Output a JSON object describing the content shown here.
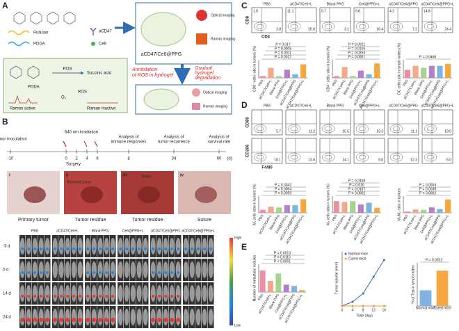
{
  "groups": [
    "PBS",
    "aCD47/Ce6+L",
    "Blank PPG",
    "Ce6@PPG+L",
    "aCD47/Ce6@PPG",
    "aCD47/Ce6@PPG+L"
  ],
  "group_colors": [
    "#ec8fa3",
    "#f3a98c",
    "#a9d28c",
    "#b57fcc",
    "#7fb3e2",
    "#f5a742"
  ],
  "panel_a": {
    "label": "A",
    "legend": [
      "Pullulan",
      "PDDA",
      "aCD47",
      "Ce6"
    ],
    "product": "aCD47/Ce6@PPG",
    "imaging_top": [
      "Optical imaging",
      "Raman imaging"
    ],
    "imaging_bottom": [
      "Optical imaging",
      "Raman imaging"
    ],
    "mechanism": {
      "ros": "ROS",
      "pdda": "PDDA",
      "succinic": "Succinic acid",
      "o2": "O₂",
      "ros2": "ROS",
      "active": "Raman active",
      "inactive": "Raman inactive"
    },
    "annihilation": [
      "Annihilation",
      "of ROS in hydrogel"
    ],
    "degradation": [
      "Gradual",
      "hydrogel",
      "degradation"
    ]
  },
  "panel_b": {
    "label": "B",
    "events": [
      [
        "Tumor inoculation"
      ],
      [
        "640 nm irradiation"
      ],
      [
        "Analysis of",
        "immune responses"
      ],
      [
        "Analysis of",
        "tumor recurrence"
      ],
      [
        "Analysis of",
        "survival rate"
      ]
    ],
    "surgery": "Surgery",
    "ticks": [
      -10,
      0,
      2,
      4,
      6,
      8,
      34,
      60
    ],
    "unit": "(d)",
    "photos": [
      {
        "num": "i",
        "caption": "Primary tumor"
      },
      {
        "num": "ii",
        "caption": "Tumor residue",
        "inset": "Resected tumor"
      },
      {
        "num": "iii",
        "caption": "Tumor residue",
        "inset": "Niche"
      },
      {
        "num": "iv",
        "caption": "Suture"
      }
    ],
    "days": [
      "-3 d",
      "0 d",
      "14 d",
      "24 d"
    ],
    "scale": [
      "High",
      "Low"
    ]
  },
  "panel_c": {
    "label": "C",
    "y_axis": "CD8",
    "x_axis": "CD4",
    "plots": [
      [
        "1.0",
        "3.8"
      ],
      [
        "11.1",
        "20.0"
      ],
      [
        "0.7",
        "3.1"
      ],
      [
        "9.8",
        "18.4"
      ],
      [
        "4.2",
        "7.2"
      ],
      [
        "14.8",
        "24.4"
      ]
    ],
    "charts": [
      {
        "ylabel": "CD8⁺ cells ratio in tumors (%)",
        "values": [
          2,
          11,
          2,
          9,
          4,
          15
        ],
        "ylim": [
          0,
          20
        ],
        "pvalues": [
          "P = 0.0017",
          "P = 0.0011",
          "P = 0.0005",
          "P = 0.017"
        ]
      },
      {
        "ylabel": "CD4⁺ cells ratio in tumors (%)",
        "values": [
          3,
          18,
          3,
          12,
          6,
          24
        ],
        "ylim": [
          0,
          30
        ],
        "pvalues": [
          "P = 0.0051",
          "P = 0.0253",
          "P = 0.0106",
          "P = 0.0021"
        ]
      },
      {
        "ylabel": "DC cells ratio in lymph nodes (%)",
        "values": [
          4,
          6,
          5,
          6,
          6,
          7
        ],
        "ylim": [
          0,
          9
        ],
        "pvalues": [
          "P = 0.0468"
        ]
      }
    ]
  },
  "panel_d": {
    "label": "D",
    "row_axes": [
      "CD80",
      "CD206"
    ],
    "x_axis": "F4/80",
    "rows": [
      [
        "5.7",
        "11.2",
        "10.5",
        "13.3",
        "11.1",
        "19.0"
      ],
      [
        "18.1",
        "13.0",
        "14.1",
        "9.8",
        "12.3",
        "6.0"
      ]
    ],
    "charts": [
      {
        "ylabel": "M₁ cells ratio in tumors (%)",
        "values": [
          4,
          8,
          7,
          10,
          10,
          18
        ],
        "ylim": [
          0,
          22
        ],
        "pvalues": [
          "P = 0.0099",
          "P = 0.0064",
          "P = 0.0042"
        ]
      },
      {
        "ylabel": "M₂ cells ratio in tumors (%)",
        "values": [
          14,
          13,
          14,
          10,
          12,
          6
        ],
        "ylim": [
          0,
          20
        ],
        "pvalues": [
          "P = 0.0002",
          "P = 0.0107",
          "P = 0.016",
          "P = 0.0408"
        ]
      },
      {
        "ylabel": "M₁/M₂ ratio in tumors",
        "values": [
          0.3,
          0.8,
          0.7,
          1.3,
          0.9,
          3.2
        ],
        "ylim": [
          0,
          4
        ],
        "pvalues": [
          "P = 0.0002",
          "P = 0.0038",
          "P = 0.0004"
        ]
      }
    ]
  },
  "panel_e": {
    "label": "E",
    "nodules": {
      "ylabel": "Number of metastatic nodules",
      "values": [
        35,
        18,
        30,
        12,
        10,
        3
      ],
      "ylim": [
        0,
        45
      ],
      "pvalues": [
        "P < 0.0001",
        "P = 0.0116",
        "P = 0.0013"
      ]
    },
    "growth": {
      "ylabel": "Tumor volume (mm³)",
      "xlabel": "Time (day)",
      "x": [
        0,
        4,
        8,
        12,
        16
      ],
      "xlim": [
        0,
        17
      ],
      "ylim": [
        0,
        1300
      ],
      "xticks": [
        0,
        4,
        8,
        12,
        16
      ],
      "series": [
        {
          "name": "Normal mice",
          "color": "#2e6fb5",
          "values": [
            0,
            100,
            300,
            700,
            1100
          ]
        },
        {
          "name": "Cured mice",
          "color": "#f39a2b",
          "values": [
            0,
            0,
            0,
            0,
            0
          ]
        }
      ]
    },
    "tem": {
      "ylabel": "% of Tᴇᴍ in lymph nodes",
      "categories": [
        "Normal mice",
        "Cured mice"
      ],
      "colors": [
        "#7fb3e2",
        "#f5a742"
      ],
      "values": [
        8,
        18
      ],
      "ylim": [
        0,
        22
      ],
      "pvalues": [
        "P = 0.0022"
      ]
    }
  }
}
